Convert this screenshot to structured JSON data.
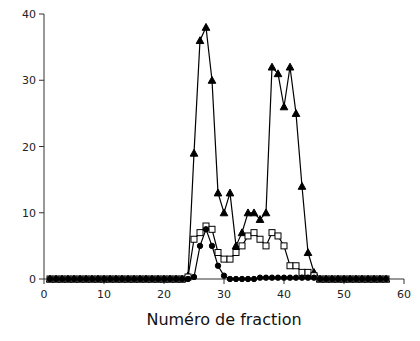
{
  "chart_data": {
    "type": "line",
    "xlabel": "Numéro de fraction",
    "x": [
      1,
      2,
      3,
      4,
      5,
      6,
      7,
      8,
      9,
      10,
      11,
      12,
      13,
      14,
      15,
      16,
      17,
      18,
      19,
      20,
      21,
      22,
      23,
      24,
      25,
      26,
      27,
      28,
      29,
      30,
      31,
      32,
      33,
      34,
      35,
      36,
      37,
      38,
      39,
      40,
      41,
      42,
      43,
      44,
      45,
      46,
      47,
      48,
      49,
      50,
      51,
      52,
      53,
      54,
      55,
      56,
      57
    ],
    "xlim": [
      0,
      60
    ],
    "ylim": [
      0,
      40
    ],
    "xticks": [
      0,
      10,
      20,
      30,
      40,
      50,
      60
    ],
    "yticks": [
      0,
      10,
      20,
      30,
      40
    ],
    "series": [
      {
        "color": "#000000",
        "marker": "triangle",
        "values": [
          0,
          0,
          0,
          0,
          0,
          0,
          0,
          0,
          0,
          0,
          0,
          0,
          0,
          0,
          0,
          0,
          0,
          0,
          0,
          0,
          0,
          0,
          0,
          0.5,
          19,
          36,
          38,
          30,
          13,
          10,
          13,
          5,
          7,
          10,
          10,
          9,
          10,
          32,
          31,
          26,
          32,
          25,
          14,
          4,
          1,
          0,
          0,
          0,
          0,
          0,
          0,
          0,
          0,
          0,
          0,
          0,
          0
        ]
      },
      {
        "color": "#000000",
        "marker": "open-square",
        "values": [
          0,
          0,
          0,
          0,
          0,
          0,
          0,
          0,
          0,
          0,
          0,
          0,
          0,
          0,
          0,
          0,
          0,
          0,
          0,
          0,
          0,
          0,
          0,
          0.3,
          6,
          7,
          8,
          7.5,
          4,
          3,
          3,
          4,
          5,
          6.5,
          7,
          6,
          5,
          7,
          6.5,
          5,
          2,
          2,
          1,
          1,
          0.5,
          0,
          0,
          0,
          0,
          0,
          0,
          0,
          0,
          0,
          0,
          0,
          0
        ]
      },
      {
        "color": "#000000",
        "marker": "circle",
        "values": [
          0,
          0,
          0,
          0,
          0,
          0,
          0,
          0,
          0,
          0,
          0,
          0,
          0,
          0,
          0,
          0,
          0,
          0,
          0,
          0,
          0,
          0,
          0,
          0,
          0.3,
          5,
          7.5,
          5,
          2,
          0.5,
          0,
          0,
          0,
          0,
          0,
          0.2,
          0.2,
          0.2,
          0.2,
          0.2,
          0.2,
          0.2,
          0.2,
          0.2,
          0.2,
          0,
          0,
          0,
          0,
          0,
          0,
          0,
          0,
          0,
          0,
          0,
          0
        ]
      }
    ]
  }
}
